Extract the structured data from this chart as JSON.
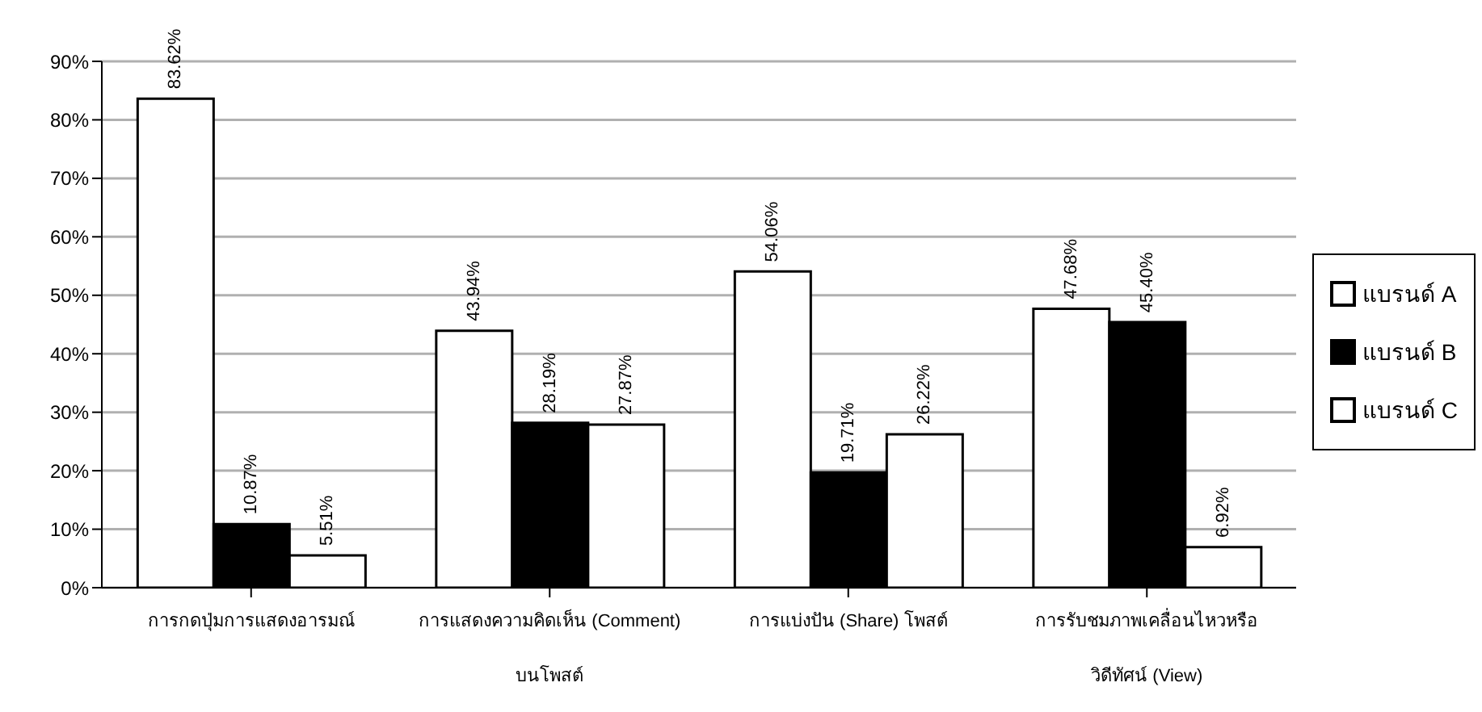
{
  "chart_data": {
    "type": "bar",
    "categories": [
      "การกดปุ่มการแสดงอารมณ์",
      "การแสดงความคิดเห็น (Comment)\nบนโพสต์",
      "การแบ่งปัน (Share) โพสต์",
      "การรับชมภาพเคลื่อนไหวหรือ\nวิดีทัศน์ (View)"
    ],
    "series": [
      {
        "name": "แบรนด์ A",
        "color": "#ffffff",
        "values": [
          83.62,
          43.94,
          54.06,
          47.68
        ],
        "value_labels": [
          "83.62%",
          "43.94%",
          "54.06%",
          "47.68%"
        ]
      },
      {
        "name": "แบรนด์ B",
        "color": "#000000",
        "values": [
          10.87,
          28.19,
          19.71,
          45.4
        ],
        "value_labels": [
          "10.87%",
          "28.19%",
          "19.71%",
          "45.40%"
        ]
      },
      {
        "name": "แบรนด์ C",
        "color": "#ffffff",
        "values": [
          5.51,
          27.87,
          26.22,
          6.92
        ],
        "value_labels": [
          "5.51%",
          "27.87%",
          "26.22%",
          "6.92%"
        ]
      }
    ],
    "ylim": [
      0,
      90
    ],
    "yticks": [
      {
        "value": 0,
        "label": "0%"
      },
      {
        "value": 10,
        "label": "10%"
      },
      {
        "value": 20,
        "label": "20%"
      },
      {
        "value": 30,
        "label": "30%"
      },
      {
        "value": 40,
        "label": "40%"
      },
      {
        "value": 50,
        "label": "50%"
      },
      {
        "value": 60,
        "label": "60%"
      },
      {
        "value": 70,
        "label": "70%"
      },
      {
        "value": 80,
        "label": "80%"
      },
      {
        "value": 90,
        "label": "90%"
      }
    ],
    "grid": "y",
    "legend": "right"
  }
}
